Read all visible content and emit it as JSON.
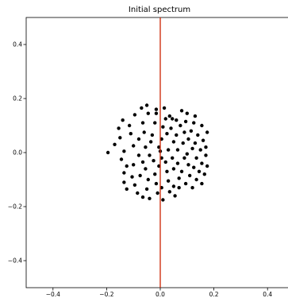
{
  "chart_data": {
    "type": "scatter",
    "title": "Initial spectrum",
    "xlabel": "",
    "ylabel": "",
    "xlim": [
      -0.5,
      0.5
    ],
    "ylim": [
      -0.5,
      0.5
    ],
    "xticks": [
      -0.4,
      -0.2,
      0.0,
      0.2,
      0.4
    ],
    "yticks": [
      -0.4,
      -0.2,
      0.0,
      0.2,
      0.4
    ],
    "xtick_labels": [
      "−0.4",
      "−0.2",
      "0.0",
      "0.2",
      "0.4"
    ],
    "ytick_labels": [
      "−0.4",
      "−0.2",
      "0.0",
      "0.2",
      "0.4"
    ],
    "grid": false,
    "colors": {
      "points": "#000000",
      "vline": "#cc2200",
      "axes": "#000000"
    },
    "vline": {
      "x": 0.0
    },
    "series": [
      {
        "points": [
          [
            -0.195,
            0.0
          ],
          [
            -0.17,
            0.03
          ],
          [
            -0.155,
            0.09
          ],
          [
            -0.15,
            0.055
          ],
          [
            -0.14,
            0.12
          ],
          [
            -0.135,
            0.005
          ],
          [
            -0.145,
            -0.025
          ],
          [
            -0.135,
            -0.075
          ],
          [
            -0.135,
            -0.11
          ],
          [
            -0.125,
            -0.05
          ],
          [
            -0.125,
            -0.135
          ],
          [
            -0.115,
            0.1
          ],
          [
            -0.11,
            0.07
          ],
          [
            -0.105,
            -0.09
          ],
          [
            -0.1,
            0.025
          ],
          [
            -0.1,
            -0.045
          ],
          [
            -0.095,
            0.14
          ],
          [
            -0.095,
            -0.12
          ],
          [
            -0.085,
            -0.15
          ],
          [
            -0.08,
            -0.01
          ],
          [
            -0.08,
            0.05
          ],
          [
            -0.075,
            -0.085
          ],
          [
            -0.07,
            0.165
          ],
          [
            -0.065,
            0.11
          ],
          [
            -0.065,
            -0.035
          ],
          [
            -0.065,
            -0.165
          ],
          [
            -0.06,
            0.075
          ],
          [
            -0.055,
            0.02
          ],
          [
            -0.055,
            -0.06
          ],
          [
            -0.05,
            -0.135
          ],
          [
            -0.045,
            0.145
          ],
          [
            -0.045,
            -0.1
          ],
          [
            -0.05,
            0.175
          ],
          [
            -0.04,
            -0.01
          ],
          [
            -0.04,
            -0.17
          ],
          [
            -0.035,
            0.04
          ],
          [
            -0.03,
            0.065
          ],
          [
            -0.025,
            -0.03
          ],
          [
            -0.02,
            0.11
          ],
          [
            -0.02,
            -0.08
          ],
          [
            -0.015,
            0.16
          ],
          [
            -0.015,
            -0.115
          ],
          [
            -0.01,
            -0.15
          ],
          [
            -0.005,
            0.02
          ],
          [
            -0.005,
            -0.05
          ],
          [
            -0.015,
            0.145
          ],
          [
            0.0,
            0.005
          ],
          [
            0.005,
            0.05
          ],
          [
            0.005,
            -0.02
          ],
          [
            0.005,
            -0.13
          ],
          [
            0.01,
            0.095
          ],
          [
            0.01,
            -0.175
          ],
          [
            0.015,
            0.165
          ],
          [
            0.02,
            -0.035
          ],
          [
            0.02,
            0.125
          ],
          [
            0.025,
            0.07
          ],
          [
            0.025,
            -0.07
          ],
          [
            0.03,
            0.01
          ],
          [
            0.03,
            -0.105
          ],
          [
            0.035,
            0.135
          ],
          [
            0.035,
            -0.145
          ],
          [
            0.04,
            0.09
          ],
          [
            0.045,
            -0.02
          ],
          [
            0.045,
            0.125
          ],
          [
            0.05,
            0.04
          ],
          [
            0.05,
            -0.06
          ],
          [
            0.05,
            -0.125
          ],
          [
            0.055,
            -0.16
          ],
          [
            0.06,
            0.12
          ],
          [
            0.06,
            0.065
          ],
          [
            0.065,
            -0.04
          ],
          [
            0.065,
            0.01
          ],
          [
            0.07,
            -0.095
          ],
          [
            0.07,
            -0.13
          ],
          [
            0.075,
            0.1
          ],
          [
            0.08,
            0.155
          ],
          [
            0.08,
            -0.07
          ],
          [
            0.085,
            0.035
          ],
          [
            0.09,
            -0.02
          ],
          [
            0.09,
            0.075
          ],
          [
            0.095,
            0.115
          ],
          [
            0.095,
            -0.115
          ],
          [
            0.1,
            0.145
          ],
          [
            0.1,
            -0.005
          ],
          [
            0.105,
            -0.045
          ],
          [
            0.105,
            0.05
          ],
          [
            0.11,
            -0.085
          ],
          [
            0.115,
            0.08
          ],
          [
            0.12,
            -0.13
          ],
          [
            0.12,
            0.015
          ],
          [
            0.125,
            0.11
          ],
          [
            0.125,
            -0.055
          ],
          [
            0.13,
            0.035
          ],
          [
            0.135,
            -0.02
          ],
          [
            0.135,
            -0.1
          ],
          [
            0.14,
            0.065
          ],
          [
            0.145,
            -0.07
          ],
          [
            0.15,
            0.01
          ],
          [
            0.155,
            0.1
          ],
          [
            0.155,
            -0.04
          ],
          [
            0.16,
            0.045
          ],
          [
            0.165,
            -0.08
          ],
          [
            0.17,
            0.02
          ],
          [
            0.17,
            -0.01
          ],
          [
            0.175,
            -0.05
          ],
          [
            0.155,
            -0.115
          ],
          [
            0.175,
            0.075
          ],
          [
            0.13,
            0.135
          ]
        ]
      }
    ]
  }
}
